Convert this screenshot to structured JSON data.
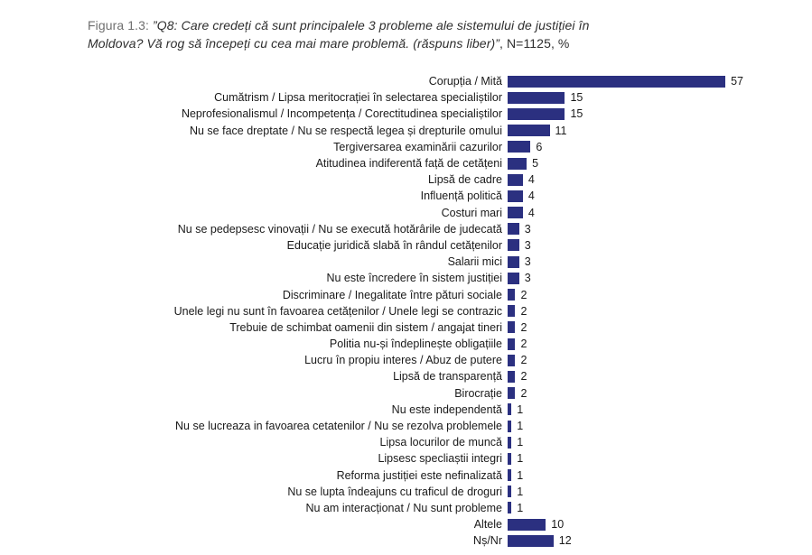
{
  "figure": {
    "prefix": "Figura 1.3:",
    "quote_line1": "”Q8: Care credeți că sunt principalele 3 probleme ale sistemului de justiției în",
    "quote_line2": "Moldova? Vă rog să începeți cu cea mai mare problemă. (răspuns liber)”",
    "suffix": ", N=1125, %"
  },
  "chart_data": {
    "type": "bar",
    "orientation": "horizontal",
    "title": "Q8: Care credeți că sunt principalele 3 probleme ale sistemului de justiției în Moldova? Vă rog să începeți cu cea mai mare problemă. (răspuns liber)",
    "sample": "N=1125",
    "unit": "%",
    "xlabel": "",
    "ylabel": "",
    "xlim": [
      0,
      60
    ],
    "grid": false,
    "legend": false,
    "value_labels": true,
    "bar_color": "#2b3080",
    "categories": [
      "Corupția / Mită",
      "Cumătrism / Lipsa meritocrației în selectarea specialiștilor",
      "Neprofesionalismul / Incompetența / Corectitudinea specialiștilor",
      "Nu se face dreptate / Nu se respectă legea și drepturile omului",
      "Tergiversarea examinării cazurilor",
      "Atitudinea indiferentă față de cetățeni",
      "Lipsă de cadre",
      "Influență politică",
      "Costuri mari",
      "Nu se pedepsesc vinovații / Nu se execută hotărârile de judecată",
      "Educație juridică slabă în rândul cetățenilor",
      "Salarii mici",
      "Nu este încredere în sistem justiției",
      "Discriminare / Inegalitate între pături sociale",
      "Unele legi nu sunt în favoarea cetățenilor / Unele legi se contrazic",
      "Trebuie de schimbat oamenii din sistem / angajat tineri",
      "Politia nu-și îndeplinește obligațiile",
      "Lucru  în propiu interes / Abuz de putere",
      "Lipsă de transparență",
      "Birocrație",
      "Nu este independentă",
      "Nu se lucreaza in favoarea cetatenilor / Nu se rezolva problemele",
      "Lipsa locurilor de muncă",
      "Lipsesc specliaștii integri",
      "Reforma justiției este nefinalizată",
      "Nu se lupta îndeajuns cu traficul de droguri",
      "Nu am interacționat / Nu sunt probleme",
      "Altele",
      "Nș/Nr"
    ],
    "values": [
      57,
      15,
      15,
      11,
      6,
      5,
      4,
      4,
      4,
      3,
      3,
      3,
      3,
      2,
      2,
      2,
      2,
      2,
      2,
      2,
      1,
      1,
      1,
      1,
      1,
      1,
      1,
      10,
      12
    ]
  }
}
